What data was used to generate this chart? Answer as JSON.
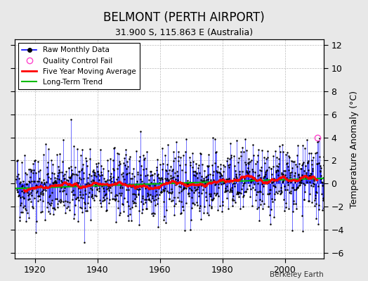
{
  "title": "BELMONT (PERTH AIRPORT)",
  "subtitle": "31.900 S, 115.863 E (Australia)",
  "ylabel": "Temperature Anomaly (°C)",
  "credit": "Berkeley Earth",
  "ylim": [
    -6.5,
    12.5
  ],
  "yticks": [
    -6,
    -4,
    -2,
    0,
    2,
    4,
    6,
    8,
    10,
    12
  ],
  "xlim": [
    1913.5,
    2012.5
  ],
  "xticks": [
    1920,
    1940,
    1960,
    1980,
    2000
  ],
  "start_year": 1914,
  "end_year": 2012,
  "seed": 42,
  "background_color": "#e8e8e8",
  "plot_bg_color": "#ffffff",
  "line_color": "#0000ff",
  "dot_color": "#000000",
  "qc_color": "#ff44cc",
  "moving_avg_color": "#ff0000",
  "trend_color": "#00bb00",
  "title_fontsize": 12,
  "subtitle_fontsize": 9,
  "label_fontsize": 9,
  "tick_fontsize": 9
}
